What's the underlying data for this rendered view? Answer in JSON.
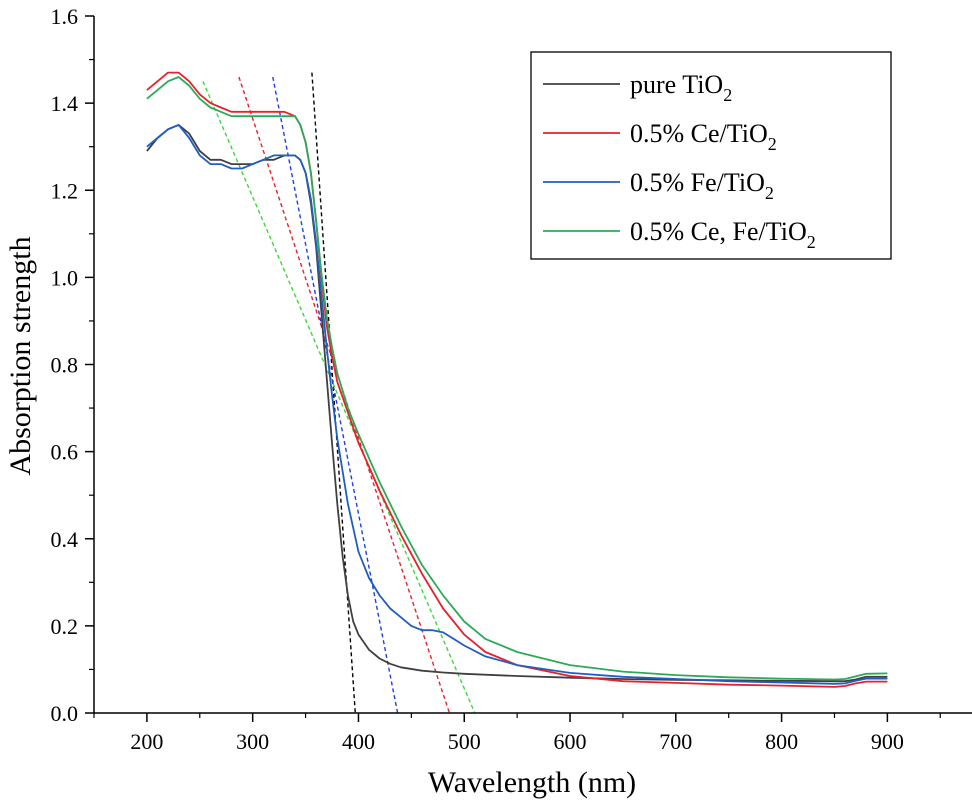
{
  "chart_data": {
    "type": "line",
    "title": "",
    "xlabel": "Wavelength (nm)",
    "ylabel": "Absorption strength",
    "xlim": [
      150,
      980
    ],
    "ylim": [
      0.0,
      1.6
    ],
    "xticks": [
      200,
      300,
      400,
      500,
      600,
      700,
      800,
      900
    ],
    "yticks": [
      0.0,
      0.2,
      0.4,
      0.6,
      0.8,
      1.0,
      1.2,
      1.4,
      1.6
    ],
    "xtick_labels": [
      "200",
      "300",
      "400",
      "500",
      "600",
      "700",
      "800",
      "900"
    ],
    "ytick_labels": [
      "0.0",
      "0.2",
      "0.4",
      "0.6",
      "0.8",
      "1.0",
      "1.2",
      "1.4",
      "1.6"
    ],
    "grid": false,
    "legend_position": "top-right",
    "series": [
      {
        "name": "pure TiO2",
        "legend_main": "pure TiO",
        "legend_sub": "2",
        "color": "#404040",
        "points": [
          [
            200,
            1.29
          ],
          [
            210,
            1.32
          ],
          [
            220,
            1.34
          ],
          [
            230,
            1.35
          ],
          [
            240,
            1.33
          ],
          [
            250,
            1.29
          ],
          [
            260,
            1.27
          ],
          [
            270,
            1.27
          ],
          [
            280,
            1.26
          ],
          [
            290,
            1.26
          ],
          [
            300,
            1.26
          ],
          [
            310,
            1.27
          ],
          [
            320,
            1.27
          ],
          [
            330,
            1.28
          ],
          [
            340,
            1.28
          ],
          [
            345,
            1.27
          ],
          [
            350,
            1.24
          ],
          [
            355,
            1.17
          ],
          [
            360,
            1.07
          ],
          [
            365,
            0.92
          ],
          [
            370,
            0.77
          ],
          [
            375,
            0.62
          ],
          [
            380,
            0.48
          ],
          [
            385,
            0.36
          ],
          [
            390,
            0.27
          ],
          [
            395,
            0.21
          ],
          [
            400,
            0.18
          ],
          [
            410,
            0.145
          ],
          [
            420,
            0.125
          ],
          [
            430,
            0.113
          ],
          [
            440,
            0.105
          ],
          [
            460,
            0.097
          ],
          [
            480,
            0.093
          ],
          [
            500,
            0.09
          ],
          [
            550,
            0.085
          ],
          [
            600,
            0.081
          ],
          [
            650,
            0.078
          ],
          [
            700,
            0.076
          ],
          [
            750,
            0.075
          ],
          [
            800,
            0.074
          ],
          [
            850,
            0.073
          ],
          [
            860,
            0.073
          ],
          [
            870,
            0.077
          ],
          [
            880,
            0.083
          ],
          [
            900,
            0.083
          ]
        ]
      },
      {
        "name": "0.5% Ce/TiO2",
        "legend_main": "0.5% Ce/TiO",
        "legend_sub": "2",
        "color": "#e8202a",
        "points": [
          [
            200,
            1.43
          ],
          [
            210,
            1.45
          ],
          [
            220,
            1.47
          ],
          [
            230,
            1.47
          ],
          [
            240,
            1.45
          ],
          [
            250,
            1.42
          ],
          [
            260,
            1.4
          ],
          [
            270,
            1.39
          ],
          [
            280,
            1.38
          ],
          [
            290,
            1.38
          ],
          [
            300,
            1.38
          ],
          [
            310,
            1.38
          ],
          [
            320,
            1.38
          ],
          [
            330,
            1.38
          ],
          [
            340,
            1.37
          ],
          [
            345,
            1.35
          ],
          [
            350,
            1.31
          ],
          [
            355,
            1.24
          ],
          [
            360,
            1.13
          ],
          [
            365,
            1.0
          ],
          [
            370,
            0.89
          ],
          [
            375,
            0.82
          ],
          [
            380,
            0.76
          ],
          [
            390,
            0.69
          ],
          [
            400,
            0.62
          ],
          [
            420,
            0.51
          ],
          [
            440,
            0.41
          ],
          [
            460,
            0.32
          ],
          [
            480,
            0.24
          ],
          [
            500,
            0.18
          ],
          [
            520,
            0.14
          ],
          [
            550,
            0.11
          ],
          [
            600,
            0.085
          ],
          [
            650,
            0.073
          ],
          [
            700,
            0.069
          ],
          [
            750,
            0.065
          ],
          [
            800,
            0.063
          ],
          [
            850,
            0.06
          ],
          [
            860,
            0.062
          ],
          [
            870,
            0.068
          ],
          [
            880,
            0.072
          ],
          [
            900,
            0.072
          ]
        ]
      },
      {
        "name": "0.5% Fe/TiO2",
        "legend_main": "0.5% Fe/TiO",
        "legend_sub": "2",
        "color": "#1f5ec2",
        "points": [
          [
            200,
            1.3
          ],
          [
            210,
            1.32
          ],
          [
            220,
            1.34
          ],
          [
            230,
            1.35
          ],
          [
            240,
            1.32
          ],
          [
            250,
            1.28
          ],
          [
            260,
            1.26
          ],
          [
            270,
            1.26
          ],
          [
            280,
            1.25
          ],
          [
            290,
            1.25
          ],
          [
            300,
            1.26
          ],
          [
            310,
            1.27
          ],
          [
            320,
            1.28
          ],
          [
            330,
            1.28
          ],
          [
            340,
            1.28
          ],
          [
            345,
            1.27
          ],
          [
            350,
            1.24
          ],
          [
            355,
            1.18
          ],
          [
            360,
            1.08
          ],
          [
            365,
            0.96
          ],
          [
            370,
            0.84
          ],
          [
            375,
            0.73
          ],
          [
            380,
            0.63
          ],
          [
            390,
            0.48
          ],
          [
            400,
            0.37
          ],
          [
            410,
            0.31
          ],
          [
            420,
            0.27
          ],
          [
            430,
            0.24
          ],
          [
            440,
            0.22
          ],
          [
            450,
            0.2
          ],
          [
            460,
            0.19
          ],
          [
            470,
            0.19
          ],
          [
            480,
            0.185
          ],
          [
            490,
            0.17
          ],
          [
            500,
            0.155
          ],
          [
            520,
            0.13
          ],
          [
            550,
            0.11
          ],
          [
            600,
            0.092
          ],
          [
            650,
            0.083
          ],
          [
            700,
            0.078
          ],
          [
            750,
            0.073
          ],
          [
            800,
            0.07
          ],
          [
            850,
            0.067
          ],
          [
            860,
            0.068
          ],
          [
            870,
            0.074
          ],
          [
            880,
            0.079
          ],
          [
            900,
            0.079
          ]
        ]
      },
      {
        "name": "0.5% Ce, Fe/TiO2",
        "legend_main": "0.5% Ce, Fe/TiO",
        "legend_sub": "2",
        "color": "#2bab57",
        "points": [
          [
            200,
            1.41
          ],
          [
            210,
            1.43
          ],
          [
            220,
            1.45
          ],
          [
            230,
            1.46
          ],
          [
            240,
            1.44
          ],
          [
            250,
            1.41
          ],
          [
            260,
            1.39
          ],
          [
            270,
            1.38
          ],
          [
            280,
            1.37
          ],
          [
            290,
            1.37
          ],
          [
            300,
            1.37
          ],
          [
            310,
            1.37
          ],
          [
            320,
            1.37
          ],
          [
            330,
            1.37
          ],
          [
            340,
            1.37
          ],
          [
            345,
            1.35
          ],
          [
            350,
            1.31
          ],
          [
            355,
            1.24
          ],
          [
            360,
            1.13
          ],
          [
            365,
            1.01
          ],
          [
            370,
            0.91
          ],
          [
            375,
            0.84
          ],
          [
            380,
            0.78
          ],
          [
            390,
            0.7
          ],
          [
            400,
            0.64
          ],
          [
            420,
            0.53
          ],
          [
            440,
            0.43
          ],
          [
            460,
            0.34
          ],
          [
            480,
            0.27
          ],
          [
            500,
            0.21
          ],
          [
            520,
            0.17
          ],
          [
            550,
            0.14
          ],
          [
            600,
            0.11
          ],
          [
            650,
            0.095
          ],
          [
            700,
            0.087
          ],
          [
            750,
            0.082
          ],
          [
            800,
            0.079
          ],
          [
            850,
            0.077
          ],
          [
            860,
            0.078
          ],
          [
            870,
            0.084
          ],
          [
            880,
            0.09
          ],
          [
            900,
            0.091
          ]
        ]
      }
    ],
    "tangent_lines": [
      {
        "name": "pure TiO2 band-edge tangent",
        "color": "#000000",
        "x1": 356,
        "y1": 1.47,
        "x2": 397,
        "y2": 0.0
      },
      {
        "name": "0.5% Ce/TiO2 band-edge tangent",
        "color": "#e8202a",
        "x1": 287,
        "y1": 1.46,
        "x2": 486,
        "y2": 0.0
      },
      {
        "name": "0.5% Fe/TiO2 band-edge tangent",
        "color": "#1f3fe0",
        "x1": 319,
        "y1": 1.46,
        "x2": 437,
        "y2": 0.0
      },
      {
        "name": "0.5% Ce, Fe/TiO2 band-edge tangent",
        "color": "#3ad83a",
        "x1": 253,
        "y1": 1.45,
        "x2": 510,
        "y2": 0.0
      }
    ]
  }
}
